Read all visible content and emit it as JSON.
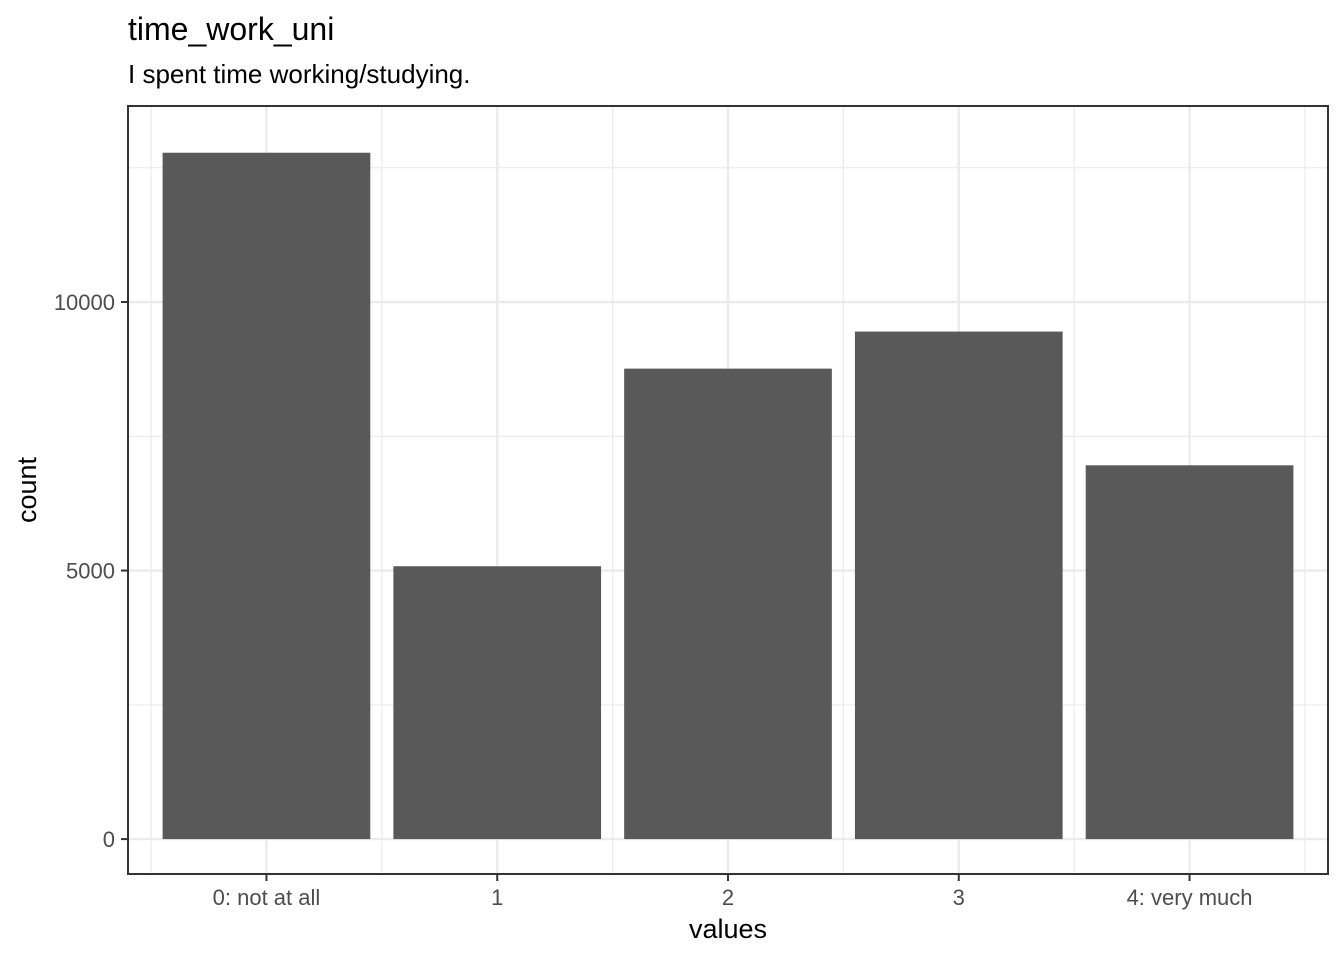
{
  "chart_data": {
    "type": "bar",
    "title": "time_work_uni",
    "subtitle": "I spent time working/studying.",
    "xlabel": "values",
    "ylabel": "count",
    "categories": [
      "0: not at all",
      "1",
      "2",
      "3",
      "4: very much"
    ],
    "values": [
      12780,
      5080,
      8760,
      9450,
      6960
    ],
    "ylim": [
      -650,
      13650
    ],
    "yticks": [
      0,
      5000,
      10000
    ],
    "ytick_labels": [
      "0",
      "5000",
      "10000"
    ],
    "grid": true,
    "bar_color": "#595959",
    "grid_color": "#ebebeb",
    "panel_border_color": "#333333"
  }
}
